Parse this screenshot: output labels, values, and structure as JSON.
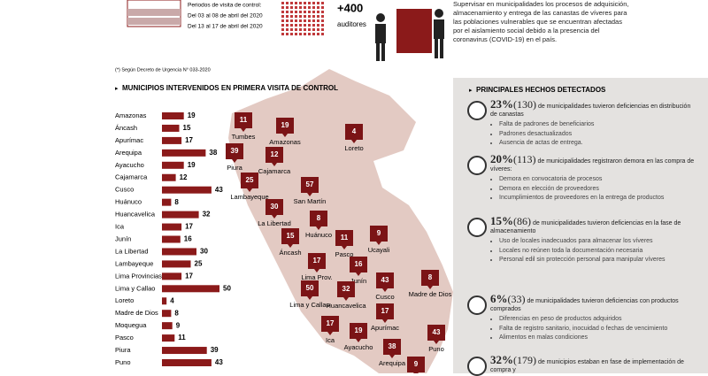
{
  "header": {
    "period_title": "Periodos de visita de control:",
    "periods": [
      "Del 03 al 08 de abril del 2020",
      "Del 13 al 17 de abril del 2020"
    ],
    "auditors": "+400",
    "auditors_label": "auditores",
    "objective": "Supervisar en municipalidades los procesos de adquisición, almacenamiento y entrega de las canastas de víveres para las poblaciones vulnerables que se encuentran afectadas por el aislamiento social debido a la presencia del coronavirus (COVID-19) en el país.",
    "footnote": "(*) Según Decreto de Urgencia N° 033-2020"
  },
  "chart_data": {
    "type": "bar",
    "orientation": "horizontal",
    "title": "MUNICIPIOS INTERVENIDOS EN PRIMERA VISITA DE CONTROL",
    "color": "#8b1a1a",
    "categories": [
      "Amazonas",
      "Áncash",
      "Apurímac",
      "Arequipa",
      "Ayacucho",
      "Cajamarca",
      "Cusco",
      "Huánuco",
      "Huancavelica",
      "Ica",
      "Junín",
      "La Libertad",
      "Lambayeque",
      "Lima Provincias",
      "Lima y Callao",
      "Loreto",
      "Madre de Dios",
      "Moquegua",
      "Pasco",
      "Piura",
      "Puno"
    ],
    "values": [
      19,
      15,
      17,
      38,
      19,
      12,
      43,
      8,
      32,
      17,
      16,
      30,
      25,
      17,
      50,
      4,
      8,
      9,
      11,
      39,
      43
    ]
  },
  "map": {
    "markers": [
      {
        "label": "Tumbes",
        "value": 11
      },
      {
        "label": "Amazonas",
        "value": 19
      },
      {
        "label": "Loreto",
        "value": 4
      },
      {
        "label": "Piura",
        "value": 39
      },
      {
        "label": "Cajamarca",
        "value": 12
      },
      {
        "label": "Lambayeque",
        "value": 25
      },
      {
        "label": "San Martín",
        "value": 57
      },
      {
        "label": "La Libertad",
        "value": 30
      },
      {
        "label": "Huánuco",
        "value": 8
      },
      {
        "label": "Áncash",
        "value": 15
      },
      {
        "label": "Pasco",
        "value": 11
      },
      {
        "label": "Ucayali",
        "value": 9
      },
      {
        "label": "Lima Prov.",
        "value": 17
      },
      {
        "label": "Junín",
        "value": 16
      },
      {
        "label": "Madre de Dios",
        "value": 8
      },
      {
        "label": "Lima y Callao",
        "value": 50
      },
      {
        "label": "Huancavelica",
        "value": 32
      },
      {
        "label": "Cusco",
        "value": 43
      },
      {
        "label": "Apurímac",
        "value": 17
      },
      {
        "label": "Ica",
        "value": 17
      },
      {
        "label": "Ayacucho",
        "value": 19
      },
      {
        "label": "Puno",
        "value": 43
      },
      {
        "label": "Arequipa",
        "value": 38
      },
      {
        "label": null,
        "value": 9
      }
    ]
  },
  "findings": {
    "title": "PRINCIPALES HECHOS DETECTADOS",
    "items": [
      {
        "pct": "23%",
        "count": "(130)",
        "text": "de municipalidades tuvieron deficiencias en distribución de canastas",
        "bullets": [
          "Falta de padrones de beneficiarios",
          "Padrones desactualizados",
          "Ausencia de actas de entrega."
        ]
      },
      {
        "pct": "20%",
        "count": "(113)",
        "text": "de municipalidades registraron demora en las compra de víveres:",
        "bullets": [
          "Demora en convocatoria de procesos",
          "Demora en elección de proveedores",
          "Incumplimientos de proveedores en la entrega de productos"
        ]
      },
      {
        "pct": "15%",
        "count": "(86)",
        "text": "de municipalidades tuvieron deficiencias en la fase de almacenamiento",
        "bullets": [
          "Uso de locales inadecuados para almacenar los víveres",
          "Locales no reúnen toda la documentación necesaria",
          "Personal edil sin protección personal para manipular víveres"
        ]
      },
      {
        "pct": "6%",
        "count": "(33)",
        "text": "de municipalidades tuvieron deficiencias con productos comprados",
        "bullets": [
          "Diferencias en peso de productos adquiridos",
          "Falta de registro sanitario, inocuidad o fechas de vencimiento",
          "Alimentos en malas condiciones"
        ]
      },
      {
        "pct": "32%",
        "count": "(179)",
        "text": "de municipios estaban en fase de implementación de compra y",
        "bullets": []
      }
    ]
  }
}
